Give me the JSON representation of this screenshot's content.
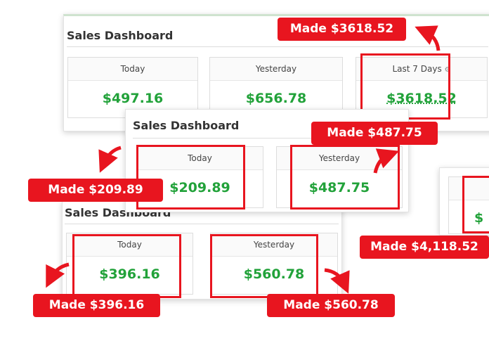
{
  "panels": [
    {
      "title": "Sales Dashboard",
      "cards": [
        {
          "label": "Today",
          "value": "$497.16"
        },
        {
          "label": "Yesterday",
          "value": "$656.78"
        },
        {
          "label": "Last 7 Days",
          "value": "$3618.52"
        }
      ]
    },
    {
      "title": "Sales Dashboard",
      "cards": [
        {
          "label": "Today",
          "value": "$209.89"
        },
        {
          "label": "Yesterday",
          "value": "$487.75"
        }
      ]
    },
    {
      "title": "Sales Dashboard",
      "cards": [
        {
          "label": "Today",
          "value": "$396.16"
        },
        {
          "label": "Yesterday",
          "value": "$560.78"
        }
      ]
    },
    {
      "cards": [
        {
          "value": "$"
        }
      ]
    }
  ],
  "badges": [
    "Made $3618.52",
    "Made $487.75",
    "Made $209.89",
    "Made $4,118.52",
    "Made $396.16",
    "Made $560.78"
  ]
}
